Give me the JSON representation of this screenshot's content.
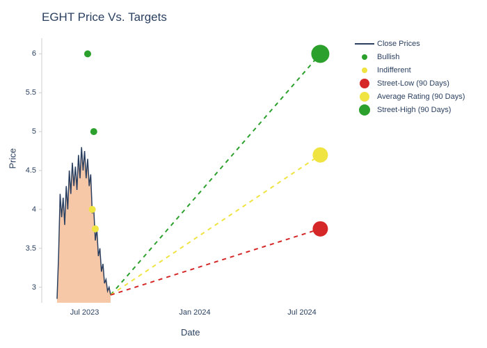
{
  "chart": {
    "type": "line-area-scatter",
    "title": "EGHT Price Vs. Targets",
    "title_fontsize": 17,
    "title_color": "#2a3f5f",
    "xlabel": "Date",
    "ylabel": "Price",
    "label_fontsize": 13,
    "label_color": "#2a3f5f",
    "background_color": "#ffffff",
    "grid_color": "#e0e0e0",
    "ylim": [
      2.8,
      6.2
    ],
    "yticks": [
      3,
      3.5,
      4,
      4.5,
      5,
      5.5,
      6
    ],
    "xticks": [
      {
        "label": "Jul 2023",
        "pos": 0.14
      },
      {
        "label": "Jan 2024",
        "pos": 0.5
      },
      {
        "label": "Jul 2024",
        "pos": 0.85
      }
    ],
    "close_prices": {
      "label": "Close Prices",
      "color": "#2a3f5f",
      "fill_color": "#f4b183",
      "fill_opacity": 0.7,
      "line_width": 1.5,
      "points": [
        [
          0.05,
          2.85
        ],
        [
          0.055,
          3.4
        ],
        [
          0.06,
          4.2
        ],
        [
          0.065,
          3.9
        ],
        [
          0.07,
          4.15
        ],
        [
          0.075,
          3.8
        ],
        [
          0.08,
          4.3
        ],
        [
          0.085,
          4.0
        ],
        [
          0.09,
          4.5
        ],
        [
          0.095,
          4.2
        ],
        [
          0.1,
          4.6
        ],
        [
          0.105,
          4.3
        ],
        [
          0.11,
          4.55
        ],
        [
          0.115,
          4.25
        ],
        [
          0.12,
          4.7
        ],
        [
          0.125,
          4.4
        ],
        [
          0.13,
          4.8
        ],
        [
          0.135,
          4.5
        ],
        [
          0.14,
          4.75
        ],
        [
          0.145,
          4.4
        ],
        [
          0.15,
          4.65
        ],
        [
          0.155,
          4.3
        ],
        [
          0.16,
          4.45
        ],
        [
          0.165,
          3.95
        ],
        [
          0.17,
          4.0
        ],
        [
          0.175,
          3.6
        ],
        [
          0.18,
          3.75
        ],
        [
          0.185,
          3.4
        ],
        [
          0.19,
          3.5
        ],
        [
          0.195,
          3.2
        ],
        [
          0.2,
          3.3
        ],
        [
          0.205,
          3.05
        ],
        [
          0.21,
          3.1
        ],
        [
          0.215,
          2.95
        ],
        [
          0.22,
          3.0
        ],
        [
          0.225,
          2.9
        ]
      ]
    },
    "bullish": {
      "label": "Bullish",
      "color": "#2ca02c",
      "marker_size": 5,
      "points": [
        [
          0.15,
          6.0
        ],
        [
          0.17,
          5.0
        ]
      ]
    },
    "indifferent": {
      "label": "Indifferent",
      "color": "#f0e442",
      "marker_size": 5,
      "points": [
        [
          0.165,
          4.0
        ],
        [
          0.175,
          3.75
        ]
      ]
    },
    "street_low": {
      "label": "Street-Low (90 Days)",
      "color": "#d62728",
      "marker_size": 11,
      "line_dash": "6,6",
      "line_width": 2,
      "start": [
        0.225,
        2.9
      ],
      "end": [
        0.91,
        3.75
      ]
    },
    "average_rating": {
      "label": "Average Rating (90 Days)",
      "color": "#f0e442",
      "marker_size": 11,
      "line_dash": "6,6",
      "line_width": 2,
      "start": [
        0.225,
        2.9
      ],
      "end": [
        0.91,
        4.7
      ]
    },
    "street_high": {
      "label": "Street-High (90 Days)",
      "color": "#2ca02c",
      "marker_size": 13,
      "line_dash": "6,6",
      "line_width": 2,
      "start": [
        0.225,
        2.9
      ],
      "end": [
        0.91,
        6.0
      ]
    }
  }
}
